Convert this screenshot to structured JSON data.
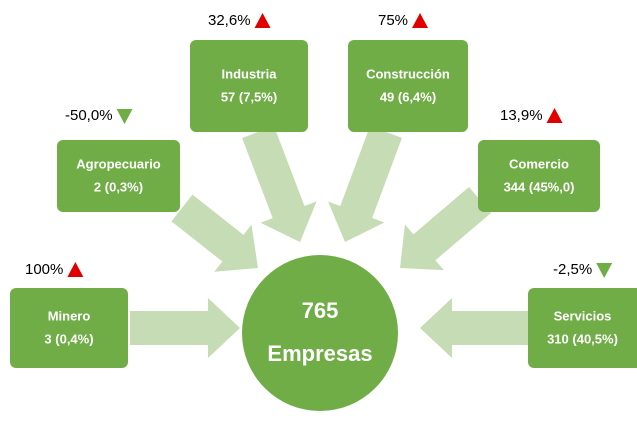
{
  "center": {
    "value": "765",
    "label": "Empresas"
  },
  "nodes": [
    {
      "name": "Minero",
      "value": "3  (0,4%)",
      "change": "100%",
      "trend": "up"
    },
    {
      "name": "Agropecuario",
      "value": "2 (0,3%)",
      "change": "-50,0%",
      "trend": "down"
    },
    {
      "name": "Industria",
      "value": "57 (7,5%)",
      "change": "32,6%",
      "trend": "up"
    },
    {
      "name": "Construcción",
      "value": "49 (6,4%)",
      "change": "75%",
      "trend": "up"
    },
    {
      "name": "Comercio",
      "value": "344 (45%,0)",
      "change": "13,9%",
      "trend": "up"
    },
    {
      "name": "Servicios",
      "value": "310 (40,5%)",
      "change": "-2,5%",
      "trend": "down"
    }
  ]
}
